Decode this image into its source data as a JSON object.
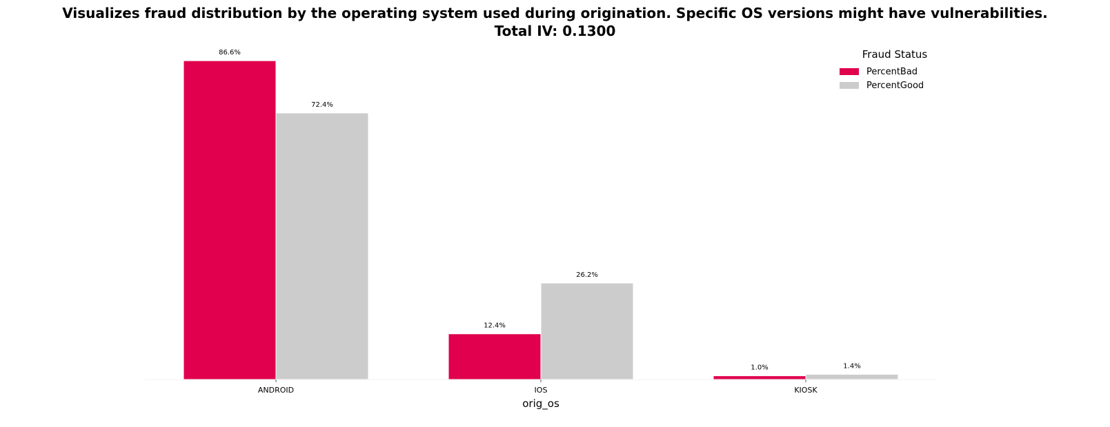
{
  "chart_data": {
    "type": "bar",
    "title_line1": "Visualizes fraud distribution by the operating system used during origination. Specific OS versions might have vulnerabilities.",
    "title_line2": "Total IV: 0.1300",
    "xlabel": "orig_os",
    "ylabel": "",
    "categories": [
      "ANDROID",
      "IOS",
      "KIOSK"
    ],
    "series": [
      {
        "name": "PercentBad",
        "values": [
          86.6,
          12.4,
          1.0
        ],
        "labels": [
          "86.6%",
          "12.4%",
          "1.0%"
        ],
        "color": "#e0004d"
      },
      {
        "name": "PercentGood",
        "values": [
          72.4,
          26.2,
          1.4
        ],
        "labels": [
          "72.4%",
          "26.2%",
          "1.4%"
        ],
        "color": "#cccccc"
      }
    ],
    "ylim": [
      0,
      90.93
    ],
    "legend": {
      "title": "Fraud Status",
      "placement": "top-right"
    },
    "grid": false,
    "y_axis_visible": false
  }
}
